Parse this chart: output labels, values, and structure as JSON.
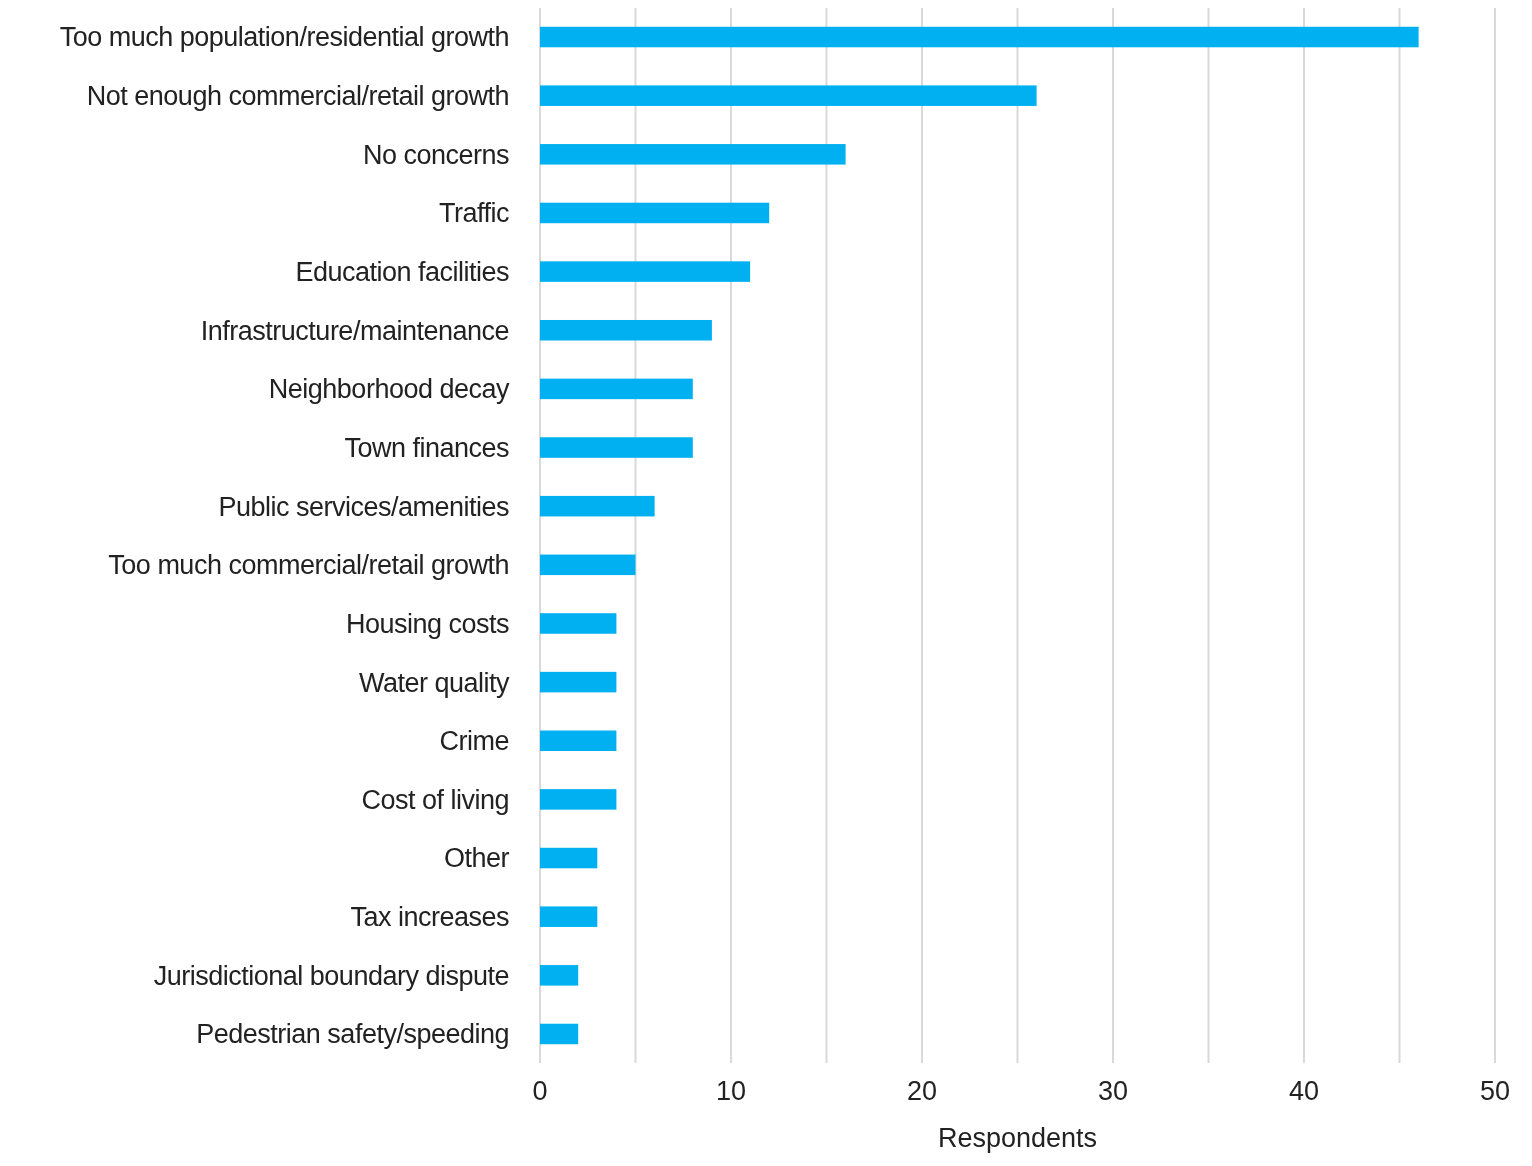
{
  "chart_data": {
    "type": "bar",
    "orientation": "horizontal",
    "xlabel": "Respondents",
    "categories": [
      "Too much population/residential growth",
      "Not enough commercial/retail growth",
      "No concerns",
      "Traffic",
      "Education facilities",
      "Infrastructure/maintenance",
      "Neighborhood decay",
      "Town finances",
      "Public services/amenities",
      "Too much commercial/retail growth",
      "Housing costs",
      "Water quality",
      "Crime",
      "Cost of living",
      "Other",
      "Tax increases",
      "Jurisdictional boundary dispute",
      "Pedestrian safety/speeding"
    ],
    "values": [
      46,
      26,
      16,
      12,
      11,
      9,
      8,
      8,
      6,
      5,
      4,
      4,
      4,
      4,
      3,
      3,
      2,
      2
    ],
    "color": "#00b0f0",
    "xlim": [
      0,
      50
    ],
    "xticks": [
      0,
      {
        "value": 5,
        "label": null
      },
      10,
      {
        "value": 15,
        "label": null
      },
      20,
      {
        "value": 25,
        "label": null
      },
      30,
      {
        "value": 35,
        "label": null
      },
      40,
      {
        "value": 45,
        "label": null
      },
      50
    ],
    "grid": "x"
  }
}
